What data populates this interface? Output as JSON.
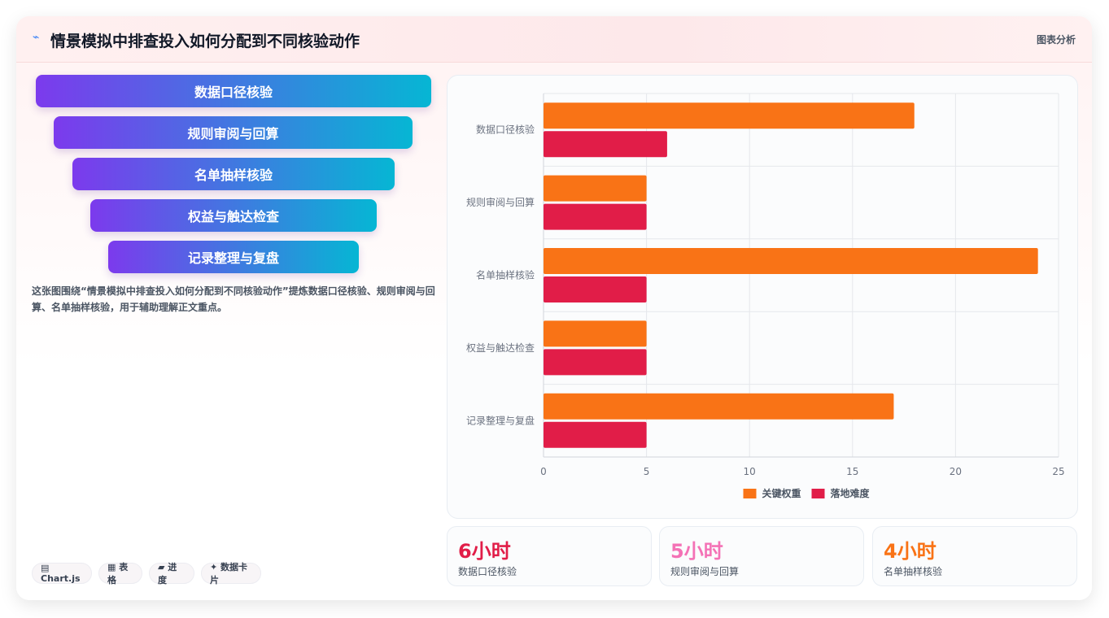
{
  "header": {
    "title_icon": "⌁",
    "title": "情景模拟中排查投入如何分配到不同核验动作",
    "tag": "图表分析"
  },
  "funnel": [
    "数据口径核验",
    "规则审阅与回算",
    "名单抽样核验",
    "权益与触达检查",
    "记录整理与复盘"
  ],
  "description": "这张图围绕“情景模拟中排查投入如何分配到不同核验动作”提炼数据口径核验、规则审阅与回算、名单抽样核验，用于辅助理解正文重点。",
  "chips": [
    "▤ Chart.js",
    "▦ 表格",
    "▰ 进度",
    "✦ 数据卡片"
  ],
  "stats": [
    {
      "value": "6小时",
      "label": "数据口径核验",
      "color": "#e11d48"
    },
    {
      "value": "5小时",
      "label": "规则审阅与回算",
      "color": "#f472b6"
    },
    {
      "value": "4小时",
      "label": "名单抽样核验",
      "color": "#f97316"
    }
  ],
  "chart_data": {
    "type": "bar",
    "orientation": "horizontal",
    "categories": [
      "数据口径核验",
      "规则审阅与回算",
      "名单抽样核验",
      "权益与触达检查",
      "记录整理与复盘"
    ],
    "series": [
      {
        "name": "关键权重",
        "values": [
          18,
          5,
          24,
          5,
          17
        ],
        "color": "#f97316"
      },
      {
        "name": "落地难度",
        "values": [
          6,
          5,
          5,
          5,
          5
        ],
        "color": "#e11d48"
      }
    ],
    "xlim": [
      0,
      25
    ],
    "xticks": [
      0,
      5,
      10,
      15,
      20,
      25
    ],
    "grid": true,
    "legend": "bottom"
  }
}
